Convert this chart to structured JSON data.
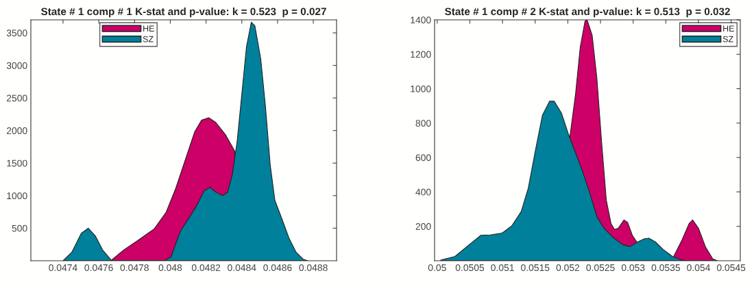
{
  "chart_data": [
    {
      "type": "area",
      "title": "State # 1 comp # 1 K-stat and p-value: k = 0.523  p = 0.027",
      "xlim": [
        0.04722,
        0.04893
      ],
      "ylim": [
        0,
        3700
      ],
      "xticks": [
        0.0474,
        0.0476,
        0.0478,
        0.048,
        0.0482,
        0.0484,
        0.0486,
        0.0488
      ],
      "yticks": [
        500,
        1000,
        1500,
        2000,
        2500,
        3000,
        3500
      ],
      "legend": "top left",
      "grid": false,
      "series": [
        {
          "name": "HE",
          "color": "#cc0066",
          "x": [
            0.047667,
            0.04774,
            0.047819,
            0.047911,
            0.047977,
            0.04803,
            0.048083,
            0.048136,
            0.048175,
            0.048215,
            0.048255,
            0.048308,
            0.04836
          ],
          "values": [
            0,
            167,
            312,
            493,
            746,
            1109,
            1543,
            1978,
            2159,
            2196,
            2123,
            1938,
            1688
          ]
        },
        {
          "name": "SZ",
          "color": "#00809a",
          "x": [
            0.0474,
            0.047449,
            0.047502,
            0.047541,
            0.047581,
            0.047621,
            0.04766,
            0.047673,
            0.047964,
            0.048004,
            0.048057,
            0.048109,
            0.048149,
            0.048189,
            0.048222,
            0.048255,
            0.048294,
            0.048321,
            0.048347,
            0.048374,
            0.0484,
            0.048426,
            0.048453,
            0.048473,
            0.048506,
            0.048532,
            0.048559,
            0.048585,
            0.048625,
            0.048664,
            0.048704,
            0.048744,
            0.04877
          ],
          "values": [
            0,
            130,
            420,
            500,
            380,
            167,
            40,
            0,
            0,
            58,
            457,
            674,
            855,
            1072,
            1127,
            1054,
            1000,
            1054,
            1326,
            1833,
            2558,
            3283,
            3663,
            3609,
            3101,
            2377,
            1471,
            928,
            638,
            348,
            130,
            22,
            0
          ]
        }
      ]
    },
    {
      "type": "area",
      "title": "State # 1 comp # 2 K-stat and p-value: k = 0.513  p = 0.032",
      "xlim": [
        0.04996,
        0.05464
      ],
      "ylim": [
        0,
        1400
      ],
      "xticks": [
        0.05,
        0.0505,
        0.051,
        0.0515,
        0.052,
        0.0525,
        0.053,
        0.0535,
        0.054,
        0.0545
      ],
      "yticks": [
        200,
        400,
        600,
        800,
        1000,
        1200,
        1400
      ],
      "legend": "top right",
      "grid": false,
      "series": [
        {
          "name": "HE",
          "color": "#cc0066",
          "x": [
            0.052027,
            0.052118,
            0.05219,
            0.052263,
            0.052295,
            0.052372,
            0.052444,
            0.052516,
            0.052589,
            0.052661,
            0.052715,
            0.05277,
            0.05286,
            0.052915,
            0.052987,
            0.053059,
            0.05334,
            0.05362,
            0.053747,
            0.053856,
            0.05391,
            0.054,
            0.054109,
            0.054218,
            0.05429
          ],
          "values": [
            709,
            969,
            1242,
            1393,
            1400,
            1311,
            1064,
            695,
            353,
            216,
            182,
            189,
            237,
            223,
            148,
            107,
            null,
            25,
            120,
            216,
            237,
            189,
            79,
            11,
            0
          ]
        },
        {
          "name": "SZ",
          "color": "#00809a",
          "x": [
            0.050054,
            0.050272,
            0.050489,
            0.05067,
            0.050815,
            0.050996,
            0.05114,
            0.051285,
            0.051394,
            0.051503,
            0.051611,
            0.05172,
            0.051792,
            0.051901,
            0.052009,
            0.052118,
            0.052227,
            0.052335,
            0.052444,
            0.052553,
            0.052697,
            0.052842,
            0.052951,
            0.053059,
            0.053168,
            0.05324,
            0.053349,
            0.053458,
            0.053602,
            0.053747,
            0.05382
          ],
          "values": [
            4,
            25,
            93,
            148,
            150,
            161,
            202,
            285,
            421,
            640,
            845,
            927,
            927,
            859,
            736,
            627,
            517,
            394,
            257,
            189,
            134,
            93,
            82,
            107,
            127,
            131,
            107,
            66,
            25,
            4,
            0
          ]
        }
      ]
    }
  ]
}
